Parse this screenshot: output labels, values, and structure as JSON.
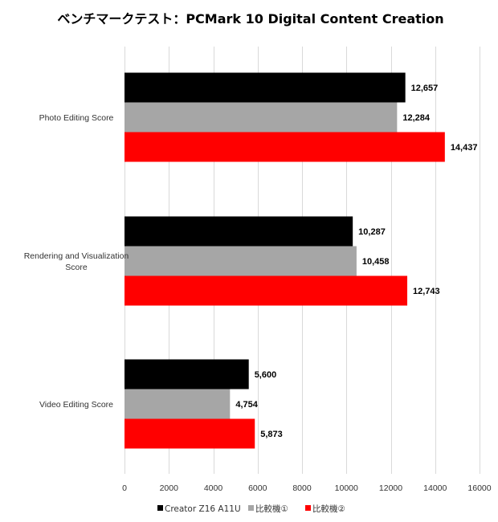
{
  "chart_data": {
    "type": "bar",
    "orientation": "horizontal",
    "title": "ベンチマークテスト：PCMark 10 Digital Content Creation",
    "categories": [
      "Photo Editing Score",
      "Rendering and Visualization Score",
      "Video Editing Score"
    ],
    "category_lines": [
      [
        "Photo Editing Score"
      ],
      [
        "Rendering and Visualization",
        "Score"
      ],
      [
        "Video Editing Score"
      ]
    ],
    "series": [
      {
        "name": "Creator Z16 A11U",
        "color": "#000000",
        "values": [
          12657,
          10287,
          5600
        ]
      },
      {
        "name": "比較機①",
        "color": "#a6a6a6",
        "values": [
          12284,
          10458,
          4754
        ]
      },
      {
        "name": "比較機②",
        "color": "#ff0000",
        "values": [
          14437,
          12743,
          5873
        ]
      }
    ],
    "xlim": [
      0,
      16000
    ],
    "xticks": [
      0,
      2000,
      4000,
      6000,
      8000,
      10000,
      12000,
      14000,
      16000
    ],
    "grid": true,
    "legend": "bottom",
    "xlabel": "",
    "ylabel": ""
  }
}
